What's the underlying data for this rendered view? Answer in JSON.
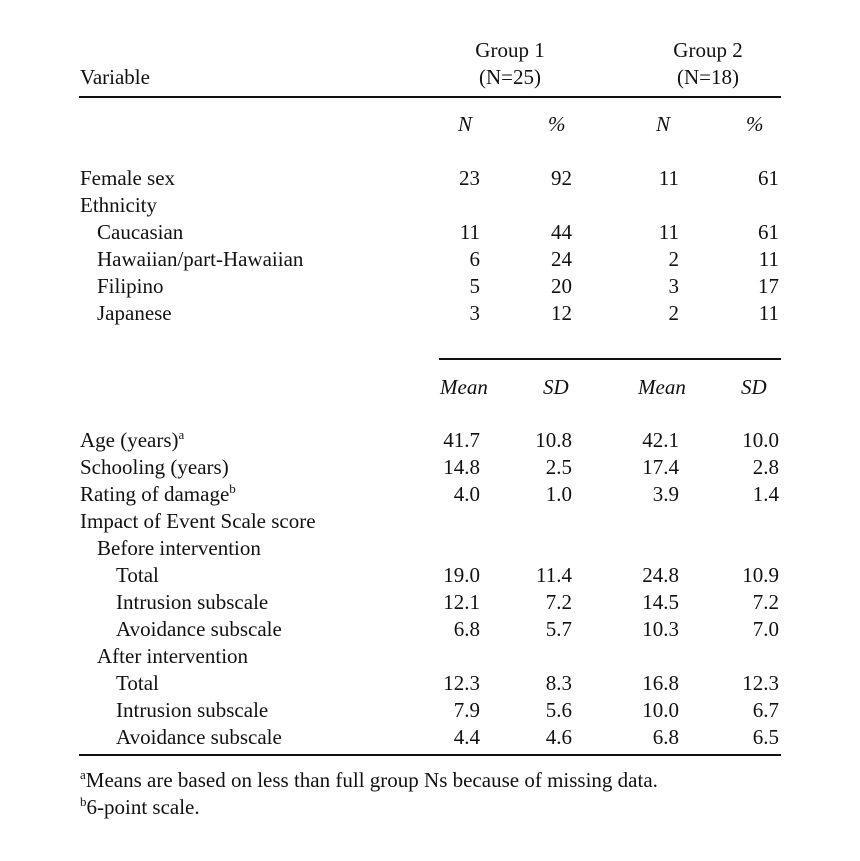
{
  "header": {
    "variable_label": "Variable",
    "groups": [
      {
        "name": "Group 1",
        "n": "(N=25)"
      },
      {
        "name": "Group 2",
        "n": "(N=18)"
      }
    ]
  },
  "section1": {
    "subheaders": [
      "N",
      "%",
      "N",
      "%"
    ],
    "rows": [
      {
        "label": "Female sex",
        "values": [
          "23",
          "92",
          "11",
          "61"
        ]
      },
      {
        "label": "Ethnicity",
        "values": []
      },
      {
        "label": "Caucasian",
        "values": [
          "11",
          "44",
          "11",
          "61"
        ]
      },
      {
        "label": "Hawaiian/part-Hawaiian",
        "values": [
          "6",
          "24",
          "2",
          "11"
        ]
      },
      {
        "label": "Filipino",
        "values": [
          "5",
          "20",
          "3",
          "17"
        ]
      },
      {
        "label": "Japanese",
        "values": [
          "3",
          "12",
          "2",
          "11"
        ]
      }
    ]
  },
  "section2": {
    "subheaders": [
      "Mean",
      "SD",
      "Mean",
      "SD"
    ],
    "rows": [
      {
        "label": "Age (years)",
        "sup": "a",
        "values": [
          "41.7",
          "10.8",
          "42.1",
          "10.0"
        ]
      },
      {
        "label": "Schooling (years)",
        "values": [
          "14.8",
          "2.5",
          "17.4",
          "2.8"
        ]
      },
      {
        "label": "Rating of damage",
        "sup": "b",
        "values": [
          "4.0",
          "1.0",
          "3.9",
          "1.4"
        ]
      },
      {
        "label": "Impact of Event Scale score",
        "values": []
      },
      {
        "label": "Before intervention",
        "values": []
      },
      {
        "label": "Total",
        "values": [
          "19.0",
          "11.4",
          "24.8",
          "10.9"
        ]
      },
      {
        "label": "Intrusion subscale",
        "values": [
          "12.1",
          "7.2",
          "14.5",
          "7.2"
        ]
      },
      {
        "label": "Avoidance subscale",
        "values": [
          "6.8",
          "5.7",
          "10.3",
          "7.0"
        ]
      },
      {
        "label": "After intervention",
        "values": []
      },
      {
        "label": "Total",
        "values": [
          "12.3",
          "8.3",
          "16.8",
          "12.3"
        ]
      },
      {
        "label": "Intrusion subscale",
        "values": [
          "7.9",
          "5.6",
          "10.0",
          "6.7"
        ]
      },
      {
        "label": "Avoidance subscale",
        "values": [
          "4.4",
          "4.6",
          "6.8",
          "6.5"
        ]
      }
    ]
  },
  "footnotes": [
    {
      "mark": "a",
      "text": "Means are based on less than full group Ns because of missing data."
    },
    {
      "mark": "b",
      "text": "6-point scale."
    }
  ]
}
